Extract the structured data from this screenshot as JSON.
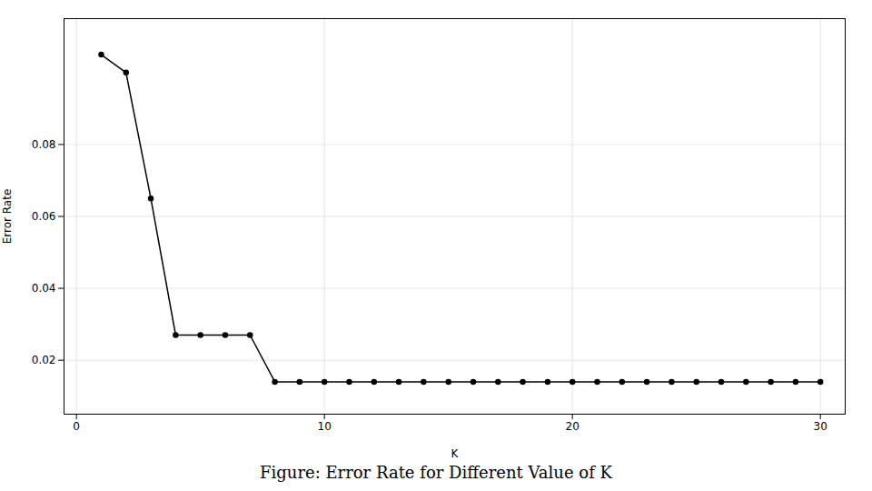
{
  "chart_data": {
    "type": "line",
    "title": "Figure: Error Rate for Different Value of K",
    "xlabel": "K",
    "ylabel": "Error Rate",
    "x": [
      1,
      2,
      3,
      4,
      5,
      6,
      7,
      8,
      9,
      10,
      11,
      12,
      13,
      14,
      15,
      16,
      17,
      18,
      19,
      20,
      21,
      22,
      23,
      24,
      25,
      26,
      27,
      28,
      29,
      30
    ],
    "values": [
      0.105,
      0.1,
      0.065,
      0.027,
      0.027,
      0.027,
      0.027,
      0.014,
      0.014,
      0.014,
      0.014,
      0.014,
      0.014,
      0.014,
      0.014,
      0.014,
      0.014,
      0.014,
      0.014,
      0.014,
      0.014,
      0.014,
      0.014,
      0.014,
      0.014,
      0.014,
      0.014,
      0.014,
      0.014,
      0.014
    ],
    "color": "black",
    "marker": "circle",
    "xlim": [
      -0.5,
      31
    ],
    "ylim": [
      0.005,
      0.115
    ],
    "xticks": [
      0,
      10,
      20,
      30
    ],
    "yticks": [
      0.02,
      0.04,
      0.06,
      0.08
    ],
    "grid": true
  }
}
